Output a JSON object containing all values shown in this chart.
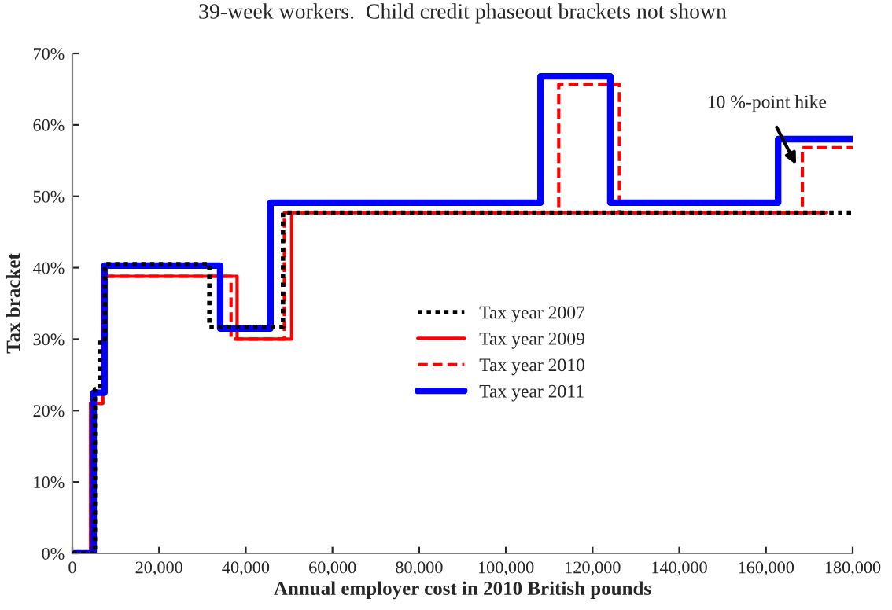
{
  "chart_data": {
    "type": "step",
    "title": "39-week workers.  Child credit phaseout brackets not shown",
    "xlabel": "Annual employer cost in 2010 British pounds",
    "ylabel": "Tax bracket",
    "xlim": [
      0,
      180000
    ],
    "xticks": [
      {
        "value": 0,
        "label": "0"
      },
      {
        "value": 20000,
        "label": "20,000"
      },
      {
        "value": 40000,
        "label": "40,000"
      },
      {
        "value": 60000,
        "label": "60,000"
      },
      {
        "value": 80000,
        "label": "80,000"
      },
      {
        "value": 100000,
        "label": "100,000"
      },
      {
        "value": 120000,
        "label": "120,000"
      },
      {
        "value": 140000,
        "label": "140,000"
      },
      {
        "value": 160000,
        "label": "160,000"
      },
      {
        "value": 180000,
        "label": "180,000"
      }
    ],
    "ylim": [
      0,
      70
    ],
    "yticks": [
      {
        "value": 0,
        "label": "0%"
      },
      {
        "value": 10,
        "label": "10%"
      },
      {
        "value": 20,
        "label": "20%"
      },
      {
        "value": 30,
        "label": "30%"
      },
      {
        "value": 40,
        "label": "40%"
      },
      {
        "value": 50,
        "label": "50%"
      },
      {
        "value": 60,
        "label": "60%"
      },
      {
        "value": 70,
        "label": "70%"
      }
    ],
    "grid": false,
    "legend": "center",
    "marker": "none",
    "series": [
      {
        "name": "Tax year 2007",
        "color": "#000000",
        "line_style": "dotted",
        "x": [
          0,
          5200,
          6300,
          7500,
          31600,
          48600,
          180000
        ],
        "values": [
          0,
          23,
          30,
          40.5,
          31.7,
          47.7,
          47.7
        ]
      },
      {
        "name": "Tax year 2009",
        "color": "#ff0000",
        "line_style": "solid",
        "x": [
          0,
          4200,
          7000,
          38000,
          50600,
          174000
        ],
        "values": [
          0,
          21,
          38.8,
          30,
          47.7,
          47.7
        ]
      },
      {
        "name": "Tax year 2010",
        "color": "#ff0000",
        "line_style": "dashed",
        "x": [
          0,
          4200,
          7000,
          36600,
          48900,
          112200,
          126200,
          168400,
          180000
        ],
        "values": [
          0,
          21,
          38.8,
          30,
          47.7,
          65.7,
          47.7,
          56.8,
          56.8
        ]
      },
      {
        "name": "Tax year 2011",
        "color": "#0000ff",
        "line_style": "solid",
        "x": [
          0,
          4900,
          7400,
          34100,
          45700,
          108000,
          124100,
          162800,
          180000
        ],
        "values": [
          0,
          22.5,
          40.3,
          31.5,
          49.1,
          66.8,
          49.1,
          58,
          58
        ]
      }
    ],
    "annotations": [
      "10 %-point hike"
    ]
  }
}
